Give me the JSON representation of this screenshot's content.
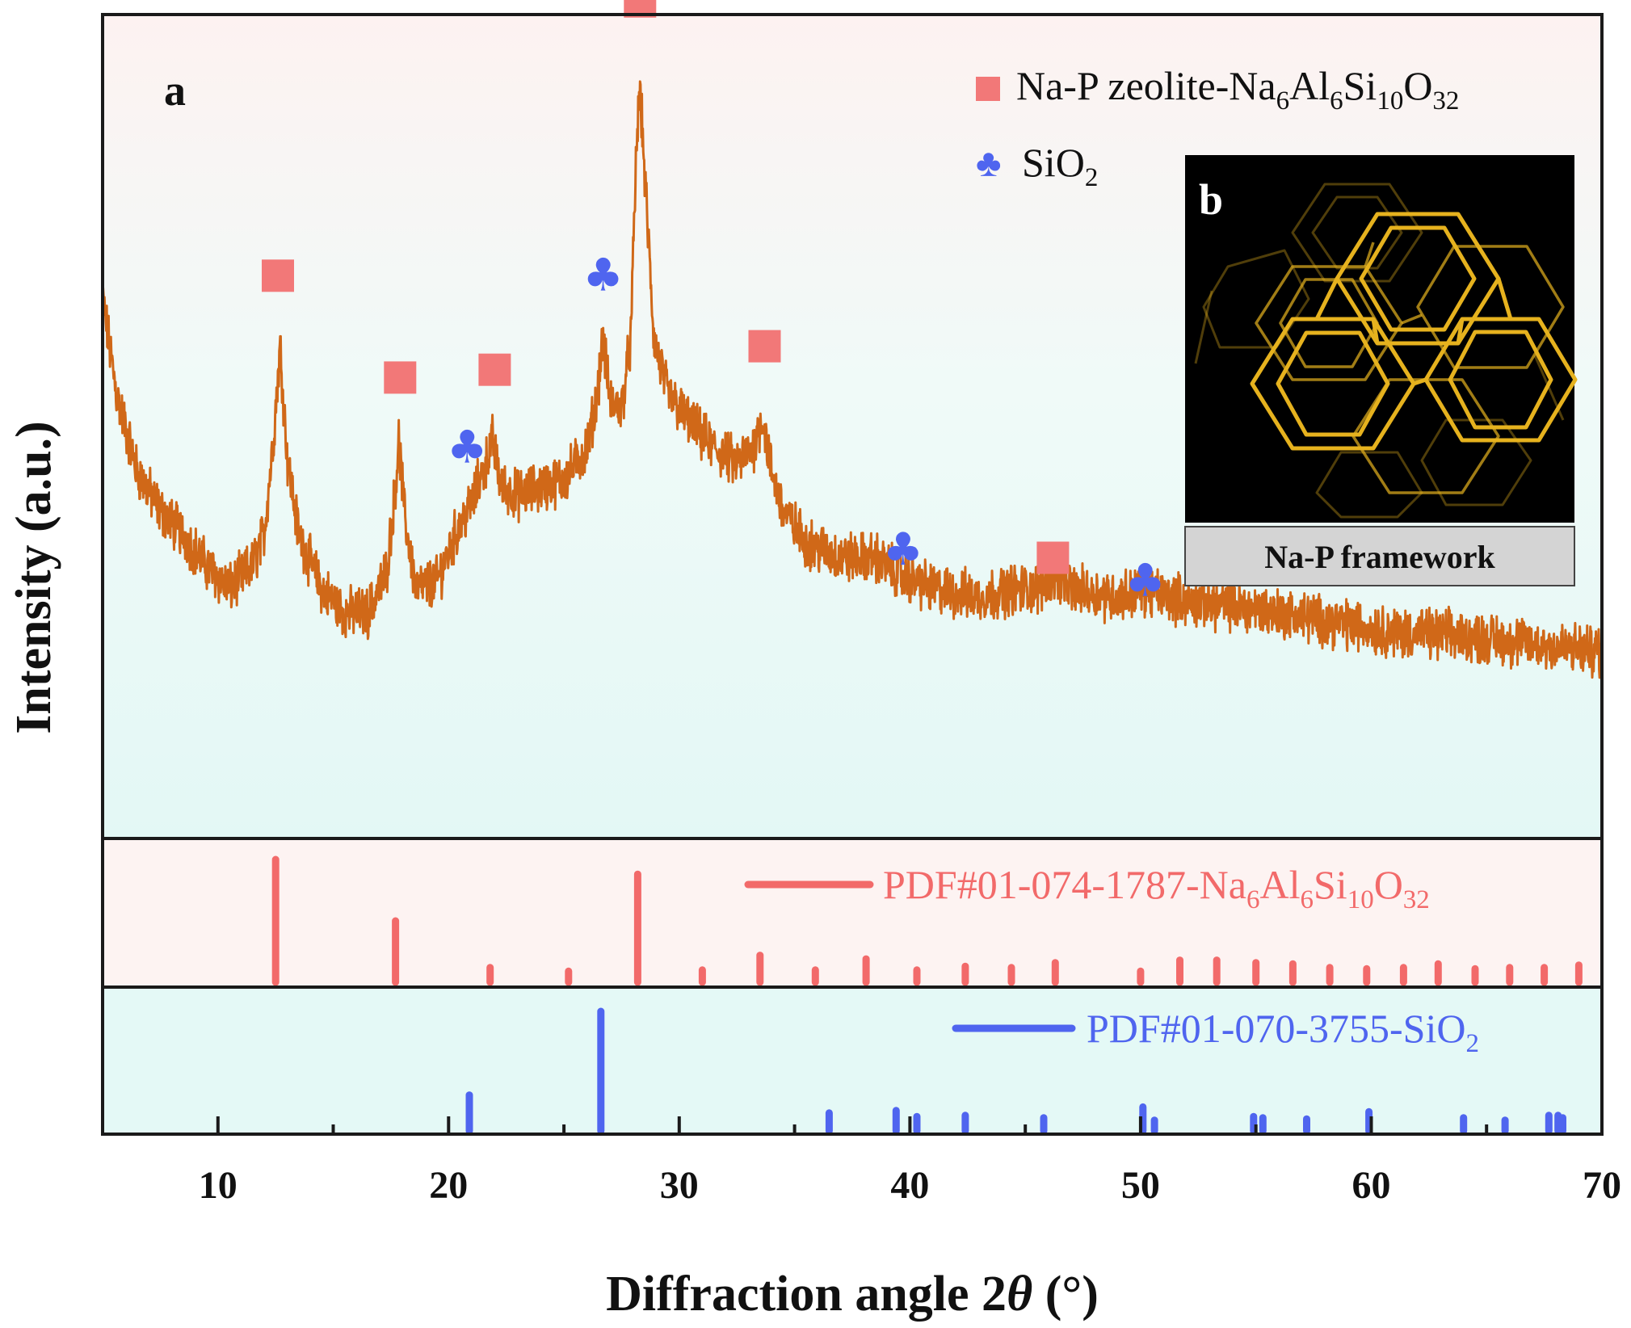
{
  "colors": {
    "pattern": "#d06818",
    "zeolite": "#f26a6a",
    "zeolite_marker": "#f27878",
    "silica": "#4f65ef",
    "frame": "#1a1a1a",
    "inset_bg": "#000000",
    "inset_lines": "#e6b21e",
    "caption_bg": "#d4d4d4"
  },
  "chart_data": {
    "type": "line",
    "title": "",
    "xlabel": "Diffraction angle 2θ (°)",
    "xlabel_parts": {
      "prefix": "Diffraction angle 2",
      "theta": "θ",
      "suffix": " (°)"
    },
    "ylabel": "Intensity (a.u.)",
    "xlim": [
      5,
      70
    ],
    "ylim": [
      0,
      100
    ],
    "xticks": [
      10,
      20,
      30,
      40,
      50,
      60,
      70
    ],
    "xtick_labels": [
      "10",
      "20",
      "30",
      "40",
      "50",
      "60",
      "70"
    ],
    "panel_label_a": "a",
    "panel_label_b": "b",
    "legend": [
      {
        "marker": "square",
        "text": "Na-P zeolite-Na",
        "sub1": "6",
        "mid1": "Al",
        "sub2": "6",
        "mid2": "Si",
        "sub3": "10",
        "mid3": "O",
        "sub4": "32"
      },
      {
        "marker": "club",
        "glyph": "♣",
        "text": "SiO",
        "sub1": "2"
      }
    ],
    "pattern_anchors": [
      [
        5.0,
        68
      ],
      [
        5.6,
        56
      ],
      [
        6.5,
        46
      ],
      [
        7.5,
        41
      ],
      [
        8.5,
        38
      ],
      [
        9.5,
        34
      ],
      [
        10.5,
        31
      ],
      [
        11.5,
        34
      ],
      [
        12.0,
        38
      ],
      [
        12.4,
        50
      ],
      [
        12.7,
        62
      ],
      [
        13.0,
        48
      ],
      [
        13.5,
        38
      ],
      [
        14.5,
        31
      ],
      [
        15.5,
        28
      ],
      [
        16.5,
        28
      ],
      [
        17.3,
        33
      ],
      [
        17.6,
        41
      ],
      [
        17.85,
        50
      ],
      [
        18.1,
        40
      ],
      [
        18.6,
        31
      ],
      [
        19.5,
        32
      ],
      [
        20.3,
        38
      ],
      [
        21.0,
        42
      ],
      [
        21.6,
        47
      ],
      [
        21.9,
        50
      ],
      [
        22.3,
        44
      ],
      [
        23.0,
        43
      ],
      [
        24.0,
        44
      ],
      [
        25.0,
        45
      ],
      [
        26.0,
        49
      ],
      [
        26.4,
        55
      ],
      [
        26.7,
        63
      ],
      [
        27.0,
        55
      ],
      [
        27.5,
        54
      ],
      [
        27.9,
        63
      ],
      [
        28.15,
        88
      ],
      [
        28.3,
        95
      ],
      [
        28.5,
        84
      ],
      [
        28.9,
        63
      ],
      [
        29.5,
        56
      ],
      [
        30.5,
        52
      ],
      [
        31.5,
        49
      ],
      [
        32.5,
        47
      ],
      [
        33.2,
        49
      ],
      [
        33.6,
        53
      ],
      [
        34.0,
        46
      ],
      [
        34.5,
        41
      ],
      [
        35.5,
        37
      ],
      [
        37.0,
        35
      ],
      [
        38.5,
        35
      ],
      [
        39.5,
        33
      ],
      [
        41.0,
        31
      ],
      [
        43.0,
        30
      ],
      [
        44.5,
        31
      ],
      [
        45.5,
        31
      ],
      [
        46.3,
        33
      ],
      [
        47.0,
        31
      ],
      [
        49.0,
        30
      ],
      [
        50.0,
        31
      ],
      [
        52.0,
        29.5
      ],
      [
        55.0,
        28.5
      ],
      [
        58.0,
        27
      ],
      [
        61.0,
        25.5
      ],
      [
        64.0,
        25
      ],
      [
        67.0,
        24
      ],
      [
        70.0,
        23
      ]
    ],
    "peak_markers": [
      {
        "phase": "zeolite",
        "x": 12.6,
        "y": 71
      },
      {
        "phase": "zeolite",
        "x": 17.9,
        "y": 58
      },
      {
        "phase": "zeolite",
        "x": 22.0,
        "y": 59
      },
      {
        "phase": "zeolite",
        "x": 28.3,
        "y": 106
      },
      {
        "phase": "zeolite",
        "x": 33.7,
        "y": 62
      },
      {
        "phase": "zeolite",
        "x": 46.2,
        "y": 35
      },
      {
        "phase": "silica",
        "x": 20.8,
        "y": 49
      },
      {
        "phase": "silica",
        "x": 26.7,
        "y": 71
      },
      {
        "phase": "silica",
        "x": 39.7,
        "y": 36
      },
      {
        "phase": "silica",
        "x": 50.2,
        "y": 32
      }
    ],
    "reference_zeolite": {
      "name": "PDF#01-074-1787-Na6Al6Si10O32",
      "label_parts": {
        "prefix": "PDF#01-074-1787-Na",
        "sub1": "6",
        "mid1": "Al",
        "sub2": "6",
        "mid2": "Si",
        "sub3": "10",
        "mid3": "O",
        "sub4": "32"
      },
      "positions": [
        12.5,
        17.7,
        21.8,
        25.2,
        28.2,
        31.0,
        33.5,
        35.9,
        38.1,
        40.3,
        42.4,
        44.4,
        46.3,
        50.0,
        51.7,
        53.3,
        55.0,
        56.6,
        58.2,
        59.8,
        61.4,
        62.9,
        64.5,
        66.0,
        67.5,
        69.0
      ],
      "intensities": [
        100,
        50,
        12,
        9,
        88,
        10,
        22,
        10,
        19,
        10,
        13,
        12,
        16,
        9,
        18,
        18,
        16,
        15,
        12,
        11,
        12,
        15,
        11,
        12,
        12,
        14
      ]
    },
    "reference_silica": {
      "name": "PDF#01-070-3755-SiO2",
      "label_parts": {
        "prefix": "PDF#01-070-3755-SiO",
        "sub1": "2"
      },
      "positions": [
        20.9,
        26.6,
        36.5,
        39.4,
        40.3,
        42.4,
        45.8,
        50.1,
        50.6,
        54.9,
        55.3,
        57.2,
        59.9,
        64.0,
        65.8,
        67.7,
        68.1,
        68.3
      ],
      "intensities": [
        30,
        100,
        15,
        17,
        12,
        13,
        11,
        20,
        9,
        12,
        11,
        10,
        16,
        11,
        9,
        13,
        13,
        11
      ]
    },
    "inset": {
      "label": "b",
      "caption": "Na-P framework"
    }
  }
}
